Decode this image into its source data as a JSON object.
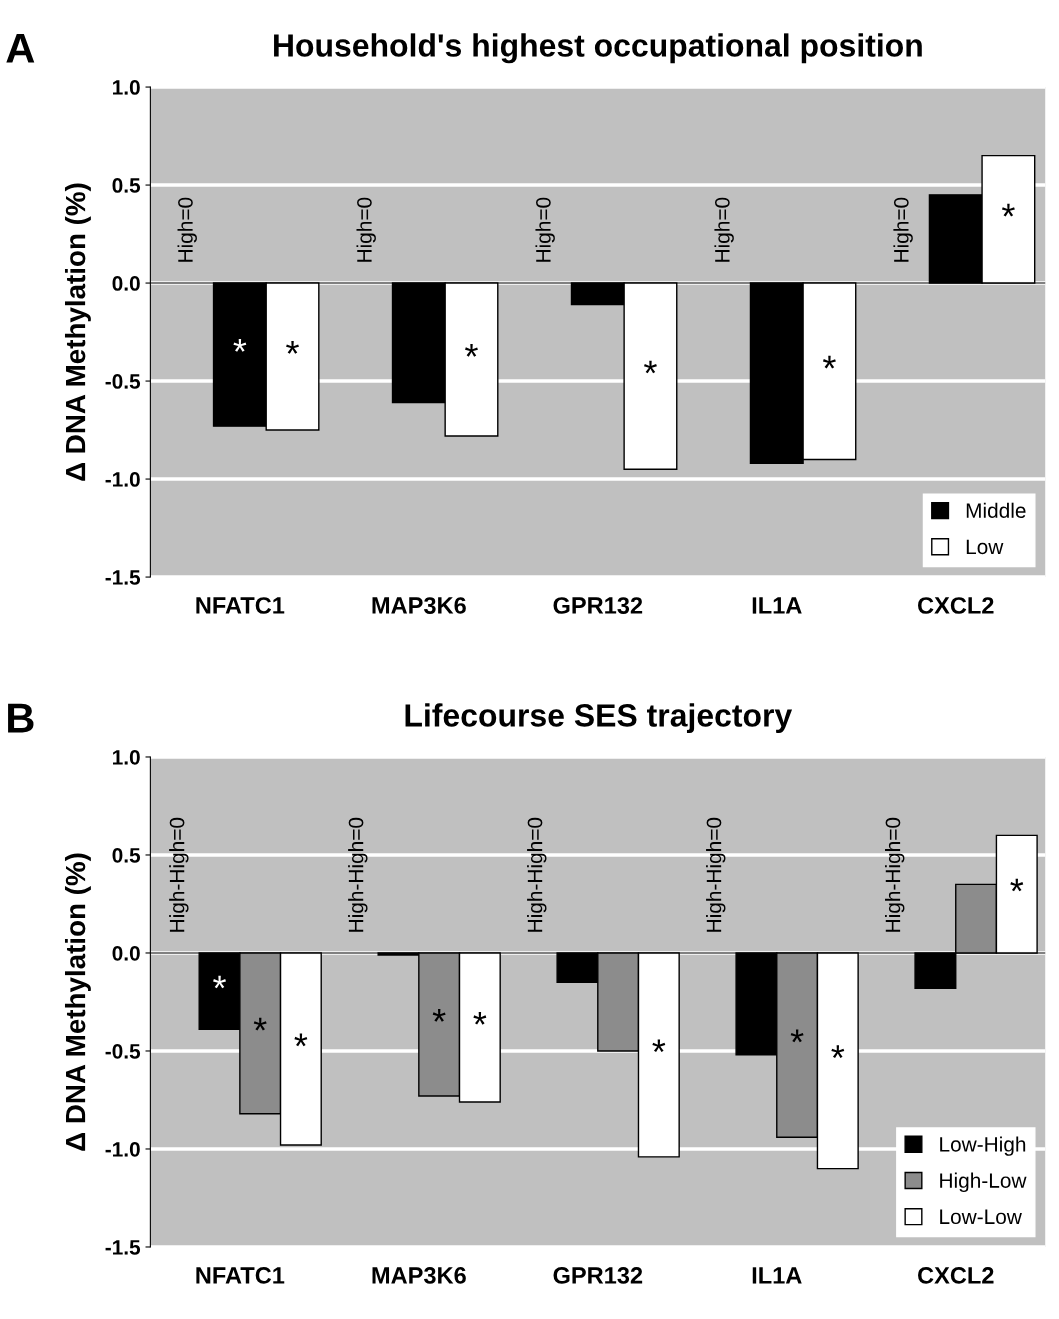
{
  "chart_data": [
    {
      "type": "bar",
      "title": "Household's highest occupational position",
      "ylabel": "Δ DNA Methylation (%)",
      "categories": [
        "NFATC1",
        "MAP3K6",
        "GPR132",
        "IL1A",
        "CXCL2"
      ],
      "series": [
        {
          "name": "Middle",
          "color": "#000000",
          "values": [
            -0.73,
            -0.61,
            -0.11,
            -0.92,
            0.45
          ],
          "value_labels": [
            "*",
            null,
            null,
            null,
            null
          ]
        },
        {
          "name": "Low",
          "color": "#ffffff",
          "values": [
            -0.75,
            -0.78,
            -0.95,
            -0.9,
            0.65
          ],
          "value_labels": [
            "*",
            "*",
            "*",
            "*",
            "*"
          ]
        }
      ],
      "annotations": [
        "A",
        {
          "text": "High=0",
          "x": "NFATC1",
          "y": 0
        },
        {
          "text": "High=0",
          "x": "MAP3K6",
          "y": 0
        },
        {
          "text": "High=0",
          "x": "GPR132",
          "y": 0
        },
        {
          "text": "High=0",
          "x": "IL1A",
          "y": 0
        },
        {
          "text": "High=0",
          "x": "CXCL2",
          "y": 0
        }
      ],
      "ylim": [
        -1.5,
        1.0
      ],
      "yticks": [
        {
          "value": -1.5,
          "label": "-1.5"
        },
        {
          "value": -1.0,
          "label": "-1.0"
        },
        {
          "value": -0.5,
          "label": "-0.5"
        },
        {
          "value": 0,
          "label": "0.0"
        },
        {
          "value": 0.5,
          "label": "0.5"
        },
        {
          "value": 1.0,
          "label": "1.0"
        }
      ],
      "grid": "y",
      "legend": "bottom right"
    },
    {
      "type": "bar",
      "title": "Lifecourse SES trajectory",
      "ylabel": "Δ DNA Methylation (%)",
      "categories": [
        "NFATC1",
        "MAP3K6",
        "GPR132",
        "IL1A",
        "CXCL2"
      ],
      "series": [
        {
          "name": "Low-High",
          "color": "#000000",
          "values": [
            -0.39,
            -0.01,
            -0.15,
            -0.52,
            -0.18
          ],
          "value_labels": [
            "*",
            null,
            null,
            null,
            null
          ]
        },
        {
          "name": "High-Low",
          "color": "#8c8c8c",
          "values": [
            -0.82,
            -0.73,
            -0.5,
            -0.94,
            0.35
          ],
          "value_labels": [
            "*",
            "*",
            null,
            "*",
            null
          ]
        },
        {
          "name": "Low-Low",
          "color": "#ffffff",
          "values": [
            -0.98,
            -0.76,
            -1.04,
            -1.1,
            0.6
          ],
          "value_labels": [
            "*",
            "*",
            "*",
            "*",
            "*"
          ]
        }
      ],
      "annotations": [
        "B",
        {
          "text": "High-High=0",
          "x": "NFATC1",
          "y": 0
        },
        {
          "text": "High-High=0",
          "x": "MAP3K6",
          "y": 0
        },
        {
          "text": "High-High=0",
          "x": "GPR132",
          "y": 0
        },
        {
          "text": "High-High=0",
          "x": "IL1A",
          "y": 0
        },
        {
          "text": "High-High=0",
          "x": "CXCL2",
          "y": 0
        }
      ],
      "ylim": [
        -1.5,
        1.0
      ],
      "yticks": [
        {
          "value": -1.5,
          "label": "-1.5"
        },
        {
          "value": -1.0,
          "label": "-1.0"
        },
        {
          "value": -0.5,
          "label": "-0.5"
        },
        {
          "value": 0,
          "label": "0.0"
        },
        {
          "value": 0.5,
          "label": "0.5"
        },
        {
          "value": 1.0,
          "label": "1.0"
        }
      ],
      "grid": "y",
      "legend": "bottom right"
    }
  ]
}
